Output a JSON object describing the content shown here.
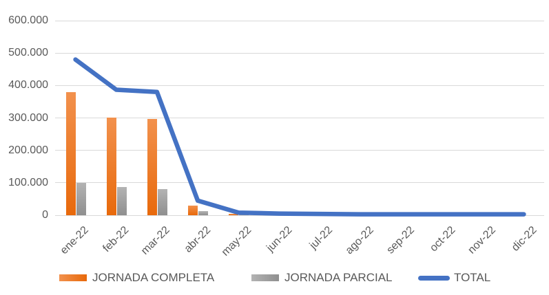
{
  "chart_data": {
    "type": "combo",
    "categories": [
      "ene-22",
      "feb-22",
      "mar-22",
      "abr-22",
      "may-22",
      "jun-22",
      "jul-22",
      "ago-22",
      "sep-22",
      "oct-22",
      "nov-22",
      "dic-22"
    ],
    "series": [
      {
        "name": "JORNADA COMPLETA",
        "kind": "bar",
        "color": "#ED7D31",
        "color_top": "#F2914D",
        "color_bottom": "#E8690B",
        "values": [
          380000,
          302000,
          296000,
          30000,
          5000,
          0,
          0,
          0,
          0,
          0,
          0,
          0
        ]
      },
      {
        "name": "JORNADA PARCIAL",
        "kind": "bar",
        "color": "#A6A6A6",
        "color_top": "#B3B3B3",
        "color_bottom": "#8F8F8F",
        "values": [
          100000,
          86000,
          80000,
          13000,
          2000,
          0,
          0,
          0,
          0,
          0,
          0,
          0
        ]
      },
      {
        "name": "TOTAL",
        "kind": "line",
        "color": "#4472C4",
        "values": [
          480000,
          387000,
          380000,
          45000,
          8000,
          5000,
          4000,
          3000,
          3000,
          3000,
          3000,
          3000
        ]
      }
    ],
    "ylim": [
      0,
      600000
    ],
    "y_tick_interval": 100000,
    "y_tick_labels": [
      "0",
      "100.000",
      "200.000",
      "300.000",
      "400.000",
      "500.000",
      "600.000"
    ],
    "grid": true,
    "legend_position": "bottom",
    "axis_text_color": "#595959",
    "gridline_color": "#D9D9D9"
  }
}
